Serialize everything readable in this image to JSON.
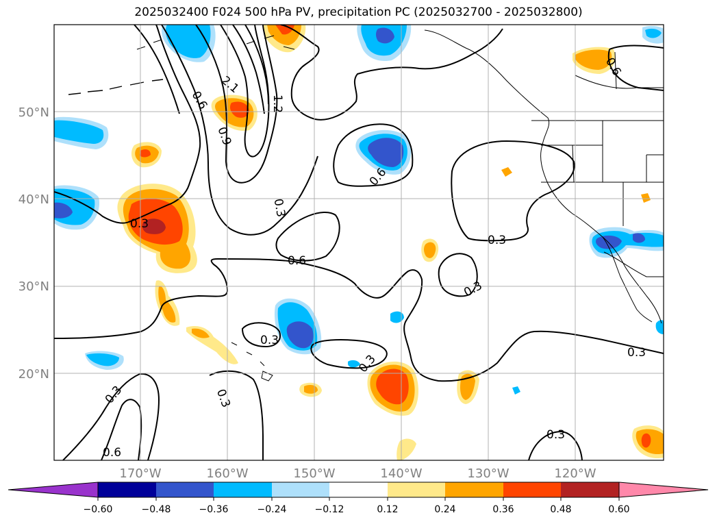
{
  "title": "2025032400 F024 500 hPa PV, precipitation PC (2025032700 - 2025032800)",
  "map": {
    "lat_labels": [
      "50°N",
      "40°N",
      "30°N",
      "20°N"
    ],
    "lon_labels": [
      "170°W",
      "160°W",
      "150°W",
      "140°W",
      "130°W",
      "120°W"
    ],
    "contour_labels": [
      "0.3",
      "0.3",
      "0.3",
      "0.3",
      "0.3",
      "0.3",
      "0.3",
      "0.3",
      "0.3",
      "0.3",
      "0.6",
      "0.6",
      "0.6",
      "0.6",
      "0.6",
      "0.9",
      "1.2",
      "2.1"
    ]
  },
  "colorbar": {
    "tick_labels": [
      "−0.60",
      "−0.48",
      "−0.36",
      "−0.24",
      "−0.12",
      "0.12",
      "0.24",
      "0.36",
      "0.48",
      "0.60"
    ],
    "colors": [
      "#9933cc",
      "#000099",
      "#3355cc",
      "#00bbff",
      "#aee0fb",
      "#ffffff",
      "#ffe98a",
      "#ffa500",
      "#ff4500",
      "#b22222",
      "#ff88aa"
    ]
  }
}
